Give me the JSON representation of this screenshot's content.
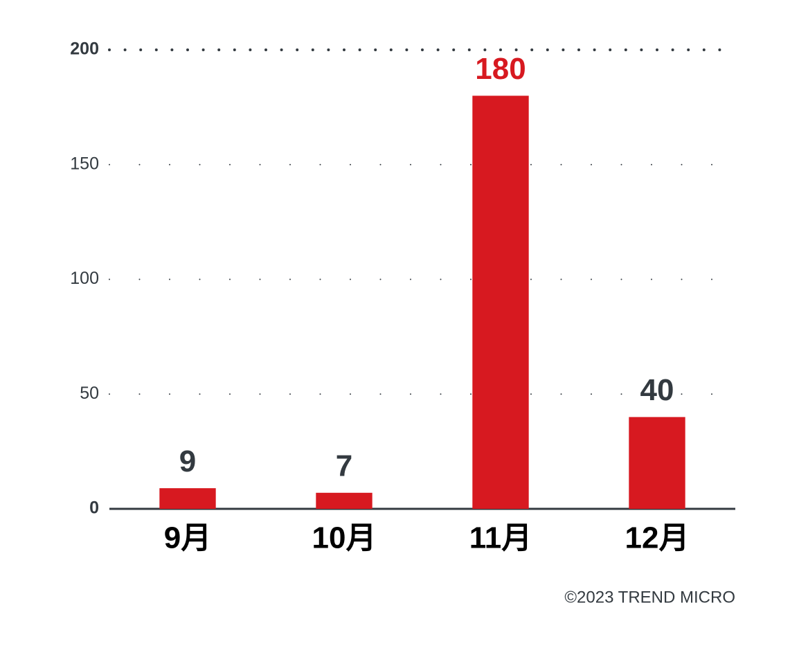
{
  "chart_data": {
    "type": "bar",
    "categories": [
      "9月",
      "10月",
      "11月",
      "12月"
    ],
    "values": [
      9,
      7,
      180,
      40
    ],
    "color": "#d71920",
    "label_colors": [
      "#333a40",
      "#333a40",
      "#d71920",
      "#333a40"
    ],
    "ylim": [
      0,
      200
    ],
    "yticks": [
      0,
      50,
      100,
      150,
      200
    ],
    "grid": true,
    "source": "©2023 TREND MICRO"
  }
}
